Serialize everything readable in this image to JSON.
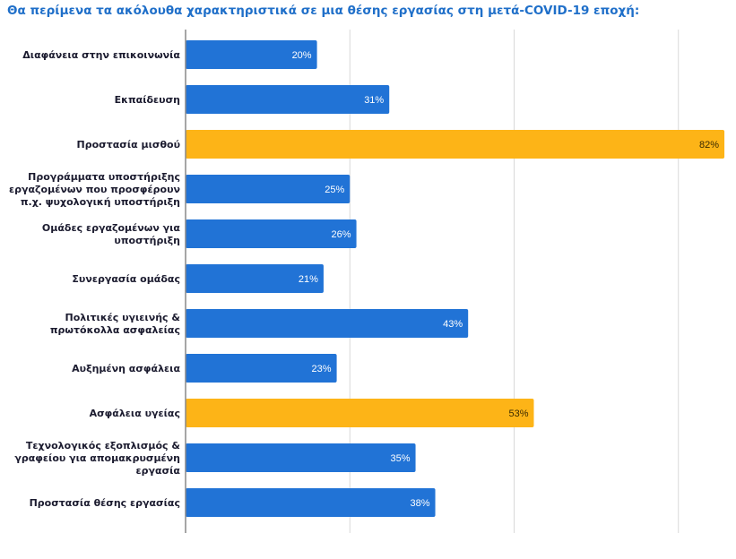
{
  "chart_data": {
    "type": "bar",
    "orientation": "horizontal",
    "title": "Θα περίμενα τα ακόλουθα χαρακτηριστικά σε μια θέσης εργασίας στη μετά-COVID-19 εποχή:",
    "xlabel": "",
    "ylabel": "",
    "xlim": [
      0,
      82
    ],
    "gridlines": [
      25,
      50,
      75
    ],
    "grid": true,
    "categories": [
      [
        "Διαφάνεια στην επικοινωνία"
      ],
      [
        "Εκπαίδευση"
      ],
      [
        "Προστασία μισθού"
      ],
      [
        "Προγράμματα υποστήριξης",
        "εργαζομένων που προσφέρουν",
        "π.χ. ψυχολογική υποστήριξη"
      ],
      [
        "Ομάδες εργαζομένων για",
        "υποστήριξη"
      ],
      [
        "Συνεργασία ομάδας"
      ],
      [
        "Πολιτικές υγιεινής &",
        "πρωτόκολλα ασφαλείας"
      ],
      [
        "Αυξημένη ασφάλεια"
      ],
      [
        "Ασφάλεια υγείας"
      ],
      [
        "Τεχνολογικός εξοπλισμός &",
        "γραφείου για απομακρυσμένη",
        "εργασία"
      ],
      [
        "Προστασία θέσης εργασίας"
      ]
    ],
    "values": [
      20,
      31,
      82,
      25,
      26,
      21,
      43,
      23,
      53,
      35,
      38
    ],
    "labels": [
      "20%",
      "31%",
      "82%",
      "25%",
      "26%",
      "21%",
      "43%",
      "23%",
      "53%",
      "35%",
      "38%"
    ],
    "highlighted": [
      false,
      false,
      true,
      false,
      false,
      false,
      false,
      false,
      true,
      false,
      false
    ],
    "colors": {
      "default_bar": "#2173d6",
      "highlight_bar": "#fdb417",
      "default_label": "#ffffff",
      "highlight_label": "#3a2a00",
      "title": "#1f6fc9",
      "grid": "#d9d9d9",
      "axis": "#888888"
    }
  }
}
